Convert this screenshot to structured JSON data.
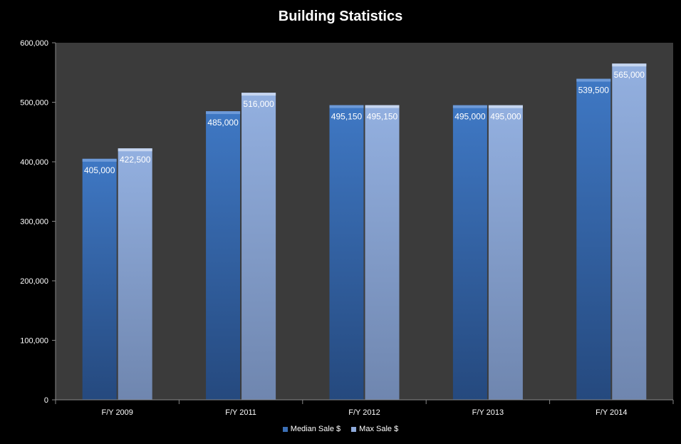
{
  "chart_data": {
    "type": "bar",
    "title": "Building Statistics",
    "categories": [
      "F/Y 2009",
      "F/Y 2011",
      "F/Y 2012",
      "F/Y 2013",
      "F/Y 2014"
    ],
    "series": [
      {
        "name": "Median Sale $",
        "values": [
          405000,
          485000,
          495150,
          495000,
          539500
        ],
        "labels": [
          "405,000",
          "485,000",
          "495,150",
          "495,000",
          "539,500"
        ],
        "color": "#3b6fb6"
      },
      {
        "name": "Max Sale $",
        "values": [
          422500,
          516000,
          495150,
          495000,
          565000
        ],
        "labels": [
          "422,500",
          "516,000",
          "495,150",
          "495,000",
          "565,000"
        ],
        "color": "#8eaadb"
      }
    ],
    "ylim": [
      0,
      600000
    ],
    "yticks": [
      0,
      100000,
      200000,
      300000,
      400000,
      500000,
      600000
    ],
    "ytick_labels": [
      "0",
      "100,000",
      "200,000",
      "300,000",
      "400,000",
      "500,000",
      "600,000"
    ],
    "grid": false,
    "legend": "bottom"
  }
}
